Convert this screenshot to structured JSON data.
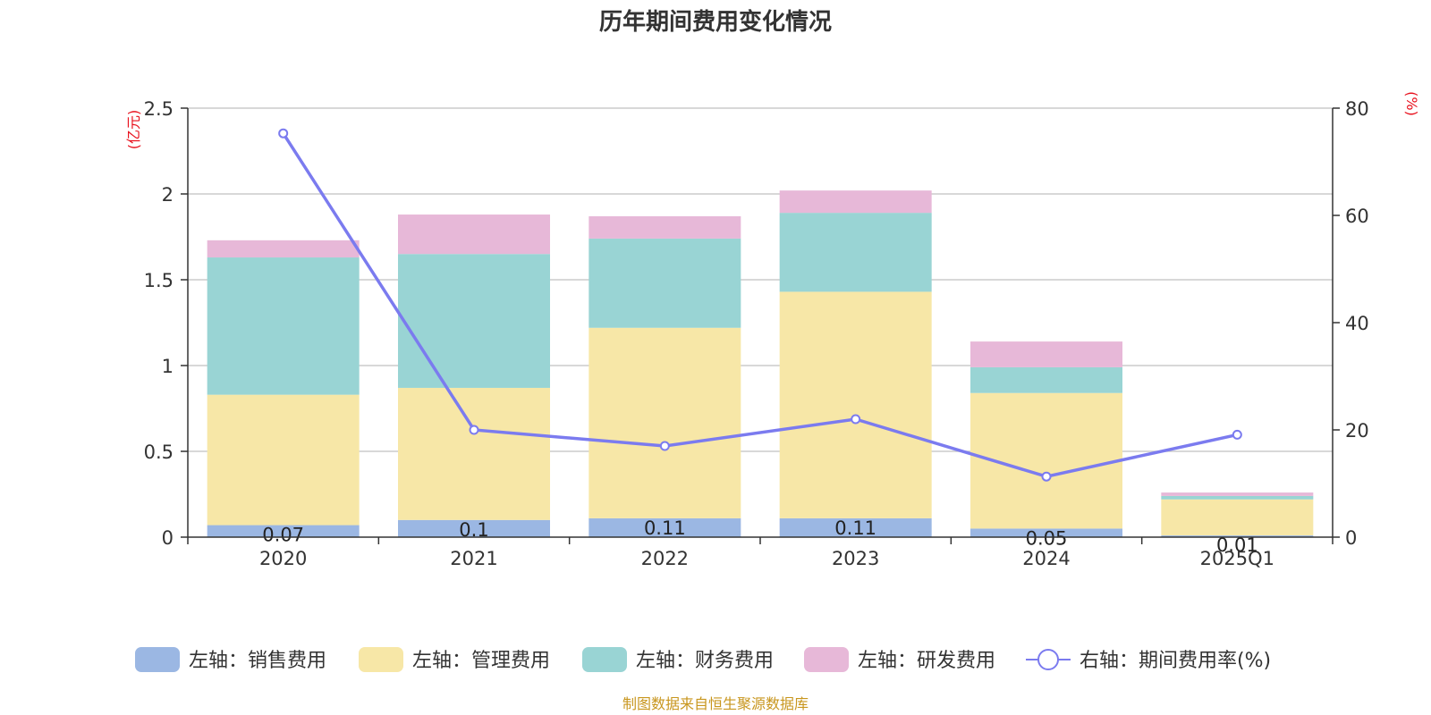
{
  "chart_data": {
    "type": "bar",
    "stacked": true,
    "title": "历年期间费用变化情况",
    "categories": [
      "2020",
      "2021",
      "2022",
      "2023",
      "2024",
      "2025Q1"
    ],
    "y_left": {
      "label": "(亿元)",
      "ylim": [
        0,
        2.5
      ],
      "ticks": [
        0,
        0.5,
        1,
        1.5,
        2,
        2.5
      ],
      "tick_labels": [
        "0",
        "0.5",
        "1",
        "1.5",
        "2",
        "2.5"
      ]
    },
    "y_right": {
      "label": "(%)",
      "ylim": [
        0,
        80
      ],
      "ticks": [
        0,
        20,
        40,
        60,
        80
      ],
      "tick_labels": [
        "0",
        "20",
        "40",
        "60",
        "80"
      ]
    },
    "series": [
      {
        "name": "左轴：销售费用",
        "axis": "left",
        "type": "bar",
        "color": "#9bb7e3",
        "values": [
          0.07,
          0.1,
          0.11,
          0.11,
          0.05,
          0.01
        ],
        "labels": [
          "0.07",
          "0.1",
          "0.11",
          "0.11",
          "0.05",
          "0.01"
        ]
      },
      {
        "name": "左轴：管理费用",
        "axis": "left",
        "type": "bar",
        "color": "#f7e7a7",
        "values": [
          0.76,
          0.77,
          1.11,
          1.32,
          0.79,
          0.21
        ]
      },
      {
        "name": "左轴：财务费用",
        "axis": "left",
        "type": "bar",
        "color": "#99d4d4",
        "values": [
          0.8,
          0.78,
          0.52,
          0.46,
          0.15,
          0.02
        ]
      },
      {
        "name": "左轴：研发费用",
        "axis": "left",
        "type": "bar",
        "color": "#e7b8d8",
        "values": [
          0.1,
          0.23,
          0.13,
          0.13,
          0.15,
          0.02
        ]
      },
      {
        "name": "右轴：期间费用率(%)",
        "axis": "right",
        "type": "line",
        "color": "#7b7bef",
        "values": [
          75.3,
          20.0,
          17.0,
          22.0,
          11.3,
          19.1
        ]
      }
    ],
    "source": "制图数据来自恒生聚源数据库"
  }
}
